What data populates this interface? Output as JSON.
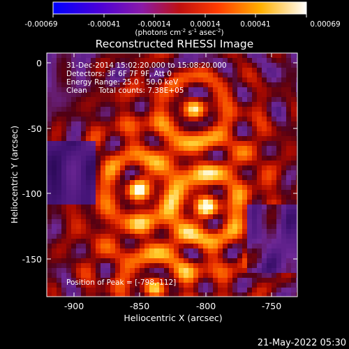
{
  "colorbar": {
    "tick_labels": [
      "-0.00069",
      "-0.00041",
      "-0.00014",
      "0.00014",
      "0.00041",
      "0.00069"
    ],
    "unit_label": "(photons cm",
    "unit_exp1": "-2",
    "unit_mid1": " s",
    "unit_exp2": "-1",
    "unit_mid2": " asec",
    "unit_exp3": "-2",
    "unit_end": ")"
  },
  "title": "Reconstructed RHESSI Image",
  "annotations": {
    "time": "31-Dec-2014 15:02:20.000 to 15:08:20.000",
    "detectors": "Detectors: 3F 6F 7F 9F, Att 0",
    "energy": "Energy Range: 25.0 - 50.0 keV",
    "clean": "Clean     Total counts: 7.38E+05",
    "peak": "Position of Peak = [-798,-112]"
  },
  "axes": {
    "xlabel": "Heliocentric X (arcsec)",
    "ylabel": "Heliocentric Y (arcsec)",
    "x_ticks": [
      "-900",
      "-850",
      "-800",
      "-750"
    ],
    "y_ticks": [
      "0",
      "-50",
      "-100",
      "-150"
    ]
  },
  "footer": {
    "timestamp": "21-May-2022 05:30"
  }
}
